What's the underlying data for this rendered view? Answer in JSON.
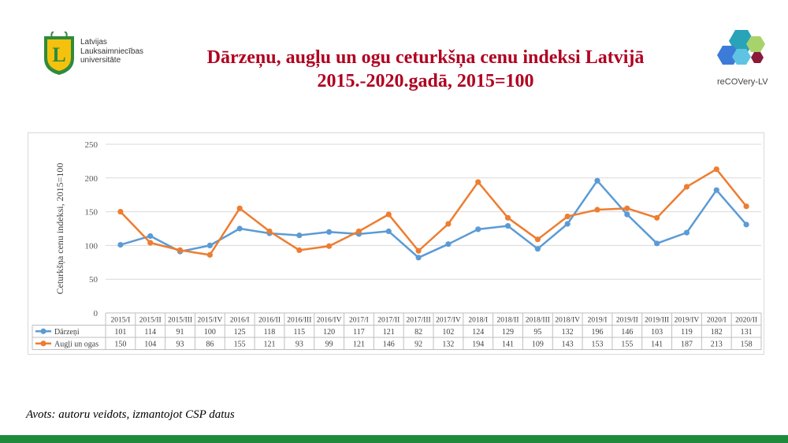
{
  "header": {
    "university_name": [
      "Latvijas",
      "Lauksaimniecības",
      "universitāte"
    ],
    "title_line1": "Dārzeņu, augļu un ogu ceturkšņa cenu indeksi Latvijā",
    "title_line2": "2015.-2020.gadā, 2015=100",
    "partner_logo_text": "reCOVery-LV"
  },
  "chart_data": {
    "type": "line",
    "categories": [
      "2015/I",
      "2015/II",
      "2015/III",
      "2015/IV",
      "2016/I",
      "2016/II",
      "2016/III",
      "2016/IV",
      "2017/I",
      "2017/II",
      "2017/III",
      "2017/IV",
      "2018/I",
      "2018/II",
      "2018/III",
      "2018/IV",
      "2019/I",
      "2019/II",
      "2019/III",
      "2019/IV",
      "2020/I",
      "2020/II"
    ],
    "series": [
      {
        "name": "Dārzeņi",
        "color": "#5b9bd5",
        "values": [
          101,
          114,
          91,
          100,
          125,
          118,
          115,
          120,
          117,
          121,
          82,
          102,
          124,
          129,
          95,
          132,
          196,
          146,
          103,
          119,
          182,
          131
        ]
      },
      {
        "name": "Augļi un ogas",
        "color": "#ed7d31",
        "values": [
          150,
          104,
          93,
          86,
          155,
          121,
          93,
          99,
          121,
          146,
          92,
          132,
          194,
          141,
          109,
          143,
          153,
          155,
          141,
          187,
          213,
          158
        ]
      }
    ],
    "ylabel": "Ceturkšņa cenu indeksi, 2015=100",
    "ylim": [
      0,
      250
    ],
    "yticks": [
      0,
      50,
      100,
      150,
      200,
      250
    ],
    "grid": true,
    "legend": "data-table"
  },
  "footer": {
    "source": "Avots: autoru veidots, izmantojot CSP datus",
    "bar_color": "#1e8a3c"
  }
}
